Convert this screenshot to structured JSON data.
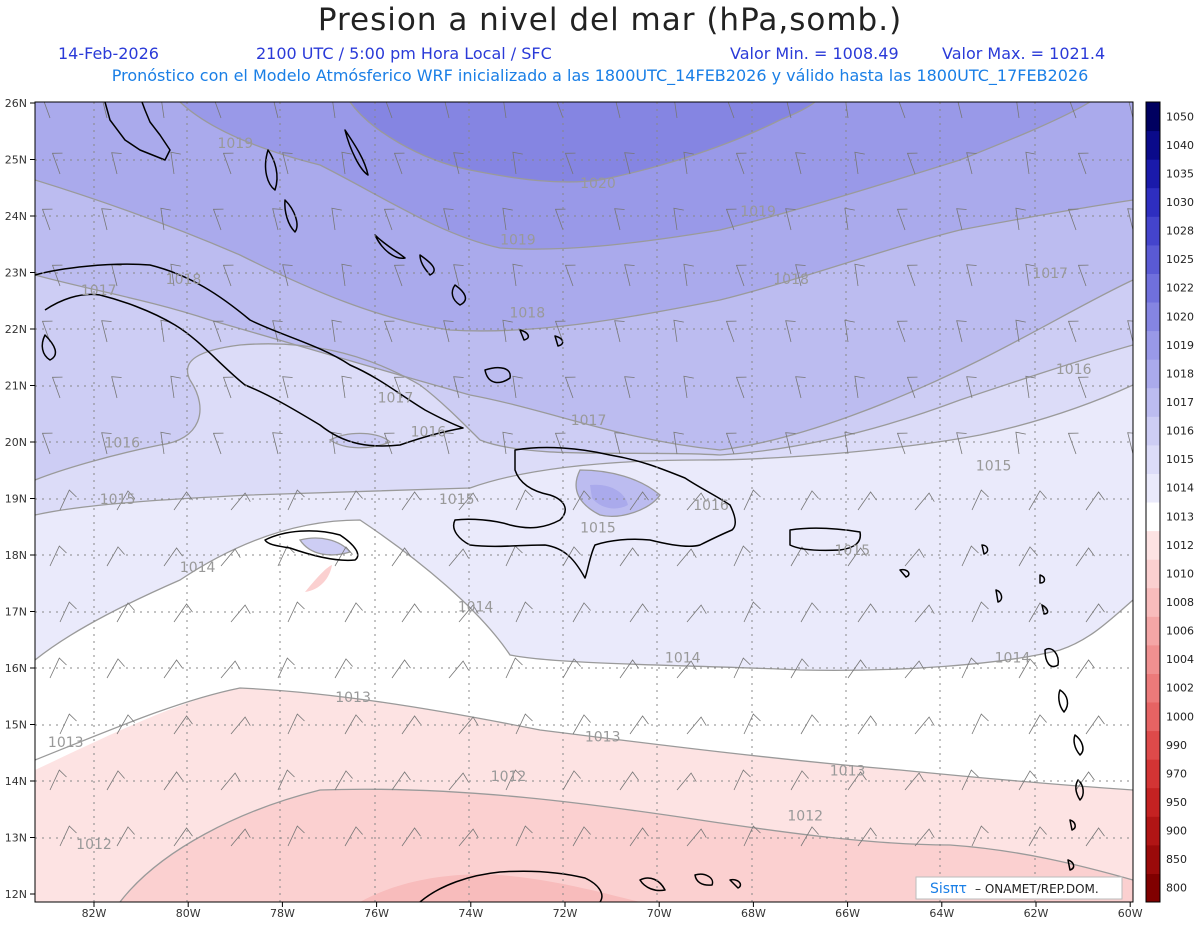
{
  "title": "Presion a nivel del mar (hPa,somb.)",
  "header": {
    "date": "14-Feb-2026",
    "time": "2100 UTC / 5:00 pm Hora Local / SFC",
    "min": "Valor Min. = 1008.49",
    "max": "Valor Max. = 1021.4",
    "forecast": "Pronóstico con el Modelo Atmósferico WRF inicializado a las 1800UTC_14FEB2026 y válido hasta las  1800UTC_17FEB2026"
  },
  "lat_labels": [
    "26N",
    "25N",
    "24N",
    "23N",
    "22N",
    "21N",
    "20N",
    "19N",
    "18N",
    "17N",
    "16N",
    "15N",
    "14N",
    "13N",
    "12N"
  ],
  "lon_labels": [
    "82W",
    "80W",
    "78W",
    "76W",
    "74W",
    "72W",
    "70W",
    "68W",
    "66W",
    "64W",
    "62W",
    "60W"
  ],
  "isobar_labels": [
    {
      "text": "1019",
      "lon": -79.0,
      "lat": 25.2
    },
    {
      "text": "1020",
      "lon": -71.3,
      "lat": 24.5
    },
    {
      "text": "1019",
      "lon": -67.9,
      "lat": 24.0
    },
    {
      "text": "1019",
      "lon": -73.0,
      "lat": 23.5
    },
    {
      "text": "1018",
      "lon": -80.1,
      "lat": 22.8
    },
    {
      "text": "1017",
      "lon": -81.9,
      "lat": 22.6
    },
    {
      "text": "1018",
      "lon": -67.2,
      "lat": 22.8
    },
    {
      "text": "1017",
      "lon": -61.7,
      "lat": 22.9
    },
    {
      "text": "1018",
      "lon": -72.8,
      "lat": 22.2
    },
    {
      "text": "1016",
      "lon": -61.2,
      "lat": 21.2
    },
    {
      "text": "1017",
      "lon": -75.6,
      "lat": 20.7
    },
    {
      "text": "1017",
      "lon": -71.5,
      "lat": 20.3
    },
    {
      "text": "1016",
      "lon": -81.4,
      "lat": 19.9
    },
    {
      "text": "1016",
      "lon": -74.9,
      "lat": 20.1
    },
    {
      "text": "1015",
      "lon": -62.9,
      "lat": 19.5
    },
    {
      "text": "1015",
      "lon": -81.5,
      "lat": 18.9
    },
    {
      "text": "1015",
      "lon": -74.3,
      "lat": 18.9
    },
    {
      "text": "1016",
      "lon": -68.9,
      "lat": 18.8
    },
    {
      "text": "1015",
      "lon": -71.3,
      "lat": 18.4
    },
    {
      "text": "1015",
      "lon": -65.9,
      "lat": 18.0
    },
    {
      "text": "1014",
      "lon": -79.8,
      "lat": 17.7
    },
    {
      "text": "1014",
      "lon": -73.9,
      "lat": 17.0
    },
    {
      "text": "1014",
      "lon": -69.5,
      "lat": 16.1
    },
    {
      "text": "1014",
      "lon": -62.5,
      "lat": 16.1
    },
    {
      "text": "1013",
      "lon": -76.5,
      "lat": 15.4
    },
    {
      "text": "1013",
      "lon": -82.6,
      "lat": 14.6
    },
    {
      "text": "1013",
      "lon": -71.2,
      "lat": 14.7
    },
    {
      "text": "1012",
      "lon": -73.2,
      "lat": 14.0
    },
    {
      "text": "1013",
      "lon": -66.0,
      "lat": 14.1
    },
    {
      "text": "1012",
      "lon": -66.9,
      "lat": 13.3
    },
    {
      "text": "1012",
      "lon": -82.0,
      "lat": 12.8
    }
  ],
  "colorbar": {
    "levels": [
      "800",
      "850",
      "900",
      "950",
      "970",
      "990",
      "1000",
      "1002",
      "1004",
      "1006",
      "1008",
      "1010",
      "1012",
      "1013",
      "1014",
      "1015",
      "1016",
      "1017",
      "1018",
      "1019",
      "1020",
      "1022",
      "1025",
      "1028",
      "1030",
      "1035",
      "1040",
      "1050"
    ],
    "colors": [
      "#800000",
      "#9a0a0a",
      "#b01515",
      "#c42222",
      "#d33434",
      "#de4a4a",
      "#e66363",
      "#ec7a7a",
      "#f09090",
      "#f4a6a6",
      "#f8bcbc",
      "#fbd0d0",
      "#fde3e3",
      "#ffffff",
      "#eaeafb",
      "#dcdcf8",
      "#cdcdf4",
      "#bcbcf0",
      "#aaaaec",
      "#9999e8",
      "#8585e2",
      "#7070dc",
      "#5a5ad4",
      "#4444cc",
      "#2e2ec0",
      "#1a1aaa",
      "#0a0a8a",
      "#000060"
    ]
  },
  "credit": {
    "logo": "Sisπτ",
    "text": "– ONAMET/REP.DOM."
  },
  "colors": {
    "coast": "#000000",
    "isobar": "#9a9a9a",
    "grid": "#888888",
    "wind": "#777777"
  }
}
